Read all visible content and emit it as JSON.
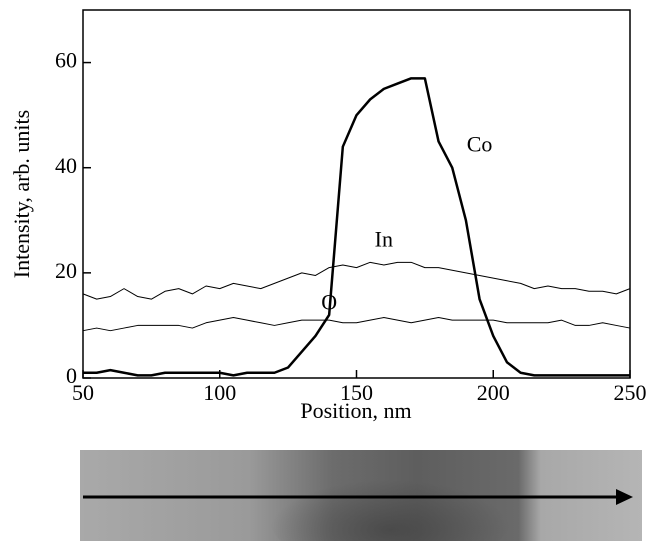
{
  "chart_data": {
    "type": "line",
    "xlabel": "Position, nm",
    "ylabel": "Intensity, arb. units",
    "x": [
      50,
      55,
      60,
      65,
      70,
      75,
      80,
      85,
      90,
      95,
      100,
      105,
      110,
      115,
      120,
      125,
      130,
      135,
      140,
      145,
      150,
      155,
      160,
      165,
      170,
      175,
      180,
      185,
      190,
      195,
      200,
      205,
      210,
      215,
      220,
      225,
      230,
      235,
      240,
      245,
      250
    ],
    "series": [
      {
        "name": "Co",
        "color": "#000000",
        "values": [
          1,
          1,
          1.5,
          1,
          0.5,
          0.5,
          1,
          1,
          1,
          1,
          1,
          0.5,
          1,
          1,
          1,
          2,
          5,
          8,
          12,
          44,
          50,
          53,
          55,
          56,
          57,
          57,
          45,
          40,
          30,
          15,
          8,
          3,
          1,
          0.5,
          0.5,
          0.5,
          0.5,
          0.5,
          0.5,
          0.5,
          0.5
        ]
      },
      {
        "name": "In",
        "color": "#000000",
        "values": [
          16,
          15,
          15.5,
          17,
          15.5,
          15,
          16.5,
          17,
          16,
          17.5,
          17,
          18,
          17.5,
          17,
          18,
          19,
          20,
          19.5,
          21,
          21.5,
          21,
          22,
          21.5,
          22,
          22,
          21,
          21,
          20.5,
          20,
          19.5,
          19,
          18.5,
          18,
          17,
          17.5,
          17,
          17,
          16.5,
          16.5,
          16,
          17
        ]
      },
      {
        "name": "O",
        "color": "#000000",
        "values": [
          9,
          9.5,
          9,
          9.5,
          10,
          10,
          10,
          10,
          9.5,
          10.5,
          11,
          11.5,
          11,
          10.5,
          10,
          10.5,
          11,
          11,
          11,
          10.5,
          10.5,
          11,
          11.5,
          11,
          10.5,
          11,
          11.5,
          11,
          11,
          11,
          11,
          10.5,
          10.5,
          10.5,
          10.5,
          11,
          10,
          10,
          10.5,
          10,
          9.5
        ]
      }
    ],
    "xlim": [
      50,
      250
    ],
    "xticks": [
      50,
      100,
      150,
      200,
      250
    ],
    "ylim": [
      0,
      70
    ],
    "yticks": [
      0,
      20,
      40,
      60
    ]
  }
}
